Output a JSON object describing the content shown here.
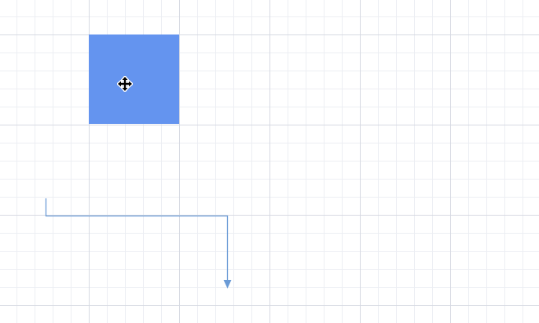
{
  "colors": {
    "shape_fill": "#6494ef",
    "connector_stroke": "#6b9bd6",
    "grid_major": "#d6d9e2",
    "grid_minor": "#eceef3"
  },
  "icons": {
    "cursor": "move-cursor-icon",
    "arrowhead": "arrowhead-icon"
  }
}
